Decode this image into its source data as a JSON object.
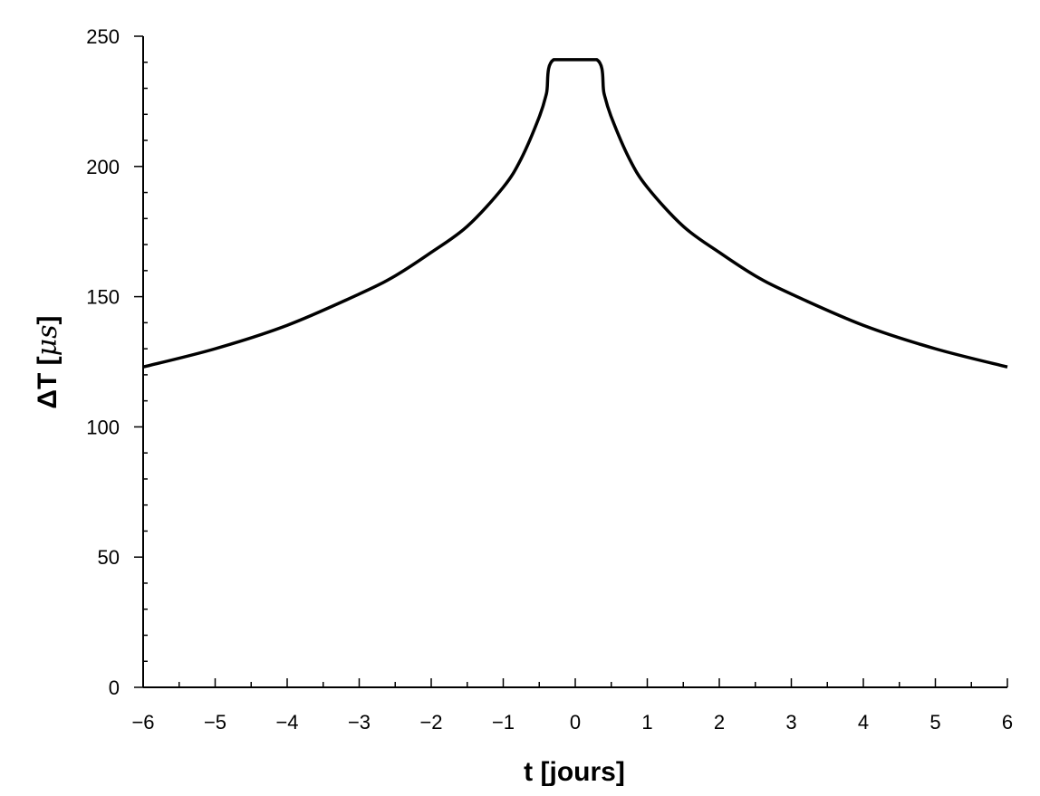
{
  "chart_data": {
    "type": "line",
    "title": "",
    "xlabel": "t  [jours]",
    "ylabel": {
      "prefix": "ΔT  [",
      "symbol": "μs",
      "suffix": "]"
    },
    "xlim": [
      -6,
      6
    ],
    "ylim": [
      0,
      250
    ],
    "x_ticks": [
      -6,
      -5,
      -4,
      -3,
      -2,
      -1,
      0,
      1,
      2,
      3,
      4,
      5,
      6
    ],
    "x_tick_labels": [
      "−6",
      "−5",
      "−4",
      "−3",
      "−2",
      "−1",
      "0",
      "1",
      "2",
      "3",
      "4",
      "5",
      "6"
    ],
    "y_ticks": [
      0,
      50,
      100,
      150,
      200,
      250
    ],
    "y_tick_labels": [
      "0",
      "50",
      "100",
      "150",
      "200",
      "250"
    ],
    "x_minor_step": 0.5,
    "y_minor_step": 10,
    "grid": false,
    "legend": "none",
    "line_color": "#000000",
    "series": [
      {
        "x": [
          -6,
          -5,
          -4,
          -3,
          -2.5,
          -2,
          -1.5,
          -1,
          -0.75,
          -0.5,
          -0.4,
          -0.3,
          0.3,
          0.4,
          0.5,
          0.75,
          1,
          1.5,
          2,
          2.5,
          3,
          4,
          5,
          6
        ],
        "values": [
          123,
          130,
          139,
          151,
          158,
          167,
          177,
          192,
          203,
          219,
          228,
          241,
          241,
          228,
          219,
          203,
          192,
          177,
          167,
          158,
          151,
          139,
          130,
          123
        ]
      }
    ]
  }
}
